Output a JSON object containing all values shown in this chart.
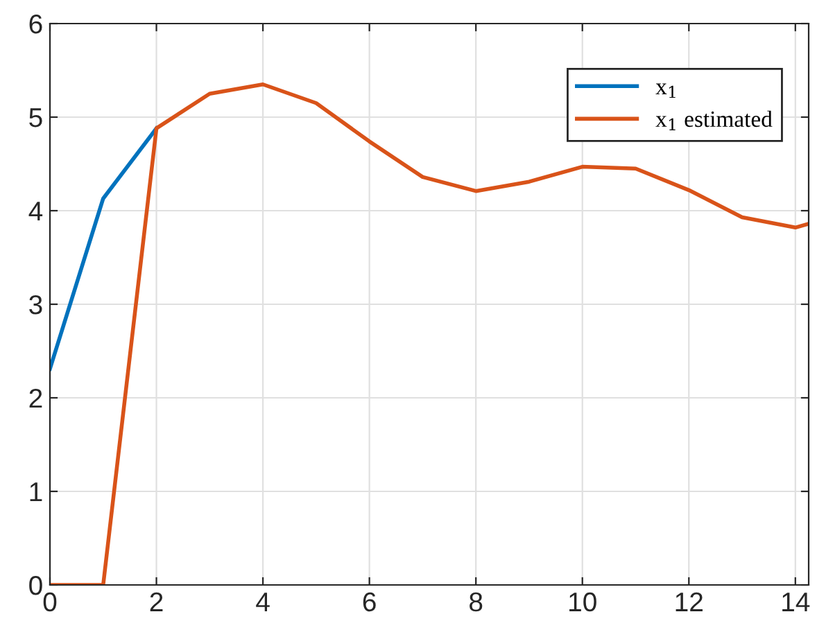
{
  "chart_data": {
    "type": "line",
    "x": [
      0,
      1,
      2,
      3,
      4,
      5,
      6,
      7,
      8,
      9,
      10,
      11,
      12,
      13,
      14,
      14.25
    ],
    "series": [
      {
        "name": "x$_{1}$",
        "color": "#0072bd",
        "values": [
          2.31,
          4.13,
          4.88,
          null,
          null,
          null,
          null,
          null,
          null,
          null,
          null,
          null,
          null,
          null,
          null,
          null
        ]
      },
      {
        "name": "x$_{1}$ estimated",
        "color": "#d95319",
        "values": [
          0,
          0,
          4.88,
          5.25,
          5.35,
          5.15,
          4.74,
          4.36,
          4.21,
          4.31,
          4.47,
          4.45,
          4.22,
          3.93,
          3.82,
          3.86
        ]
      }
    ],
    "xlim": [
      0,
      14.25
    ],
    "xticks": [
      0,
      2,
      4,
      6,
      8,
      10,
      12,
      14
    ],
    "ylim": [
      0,
      6
    ],
    "yticks": [
      0,
      1,
      2,
      3,
      4,
      5,
      6
    ],
    "grid": true,
    "legend": "top right",
    "marker": "none",
    "line_style": "solid"
  }
}
